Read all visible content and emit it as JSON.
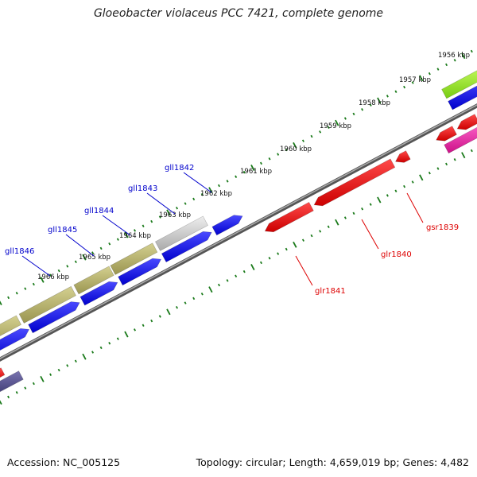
{
  "title": "Gloeobacter violaceus PCC 7421, complete genome",
  "footer": {
    "accession": "Accession: NC_005125",
    "summary": "Topology: circular; Length: 4,659,019 bp; Genes: 4,482"
  },
  "colors": {
    "forward_strand": "#0000ee",
    "reverse_strand": "#ee0000",
    "forward_label": "#0000cc",
    "reverse_label": "#dd0000",
    "backbone": "#777777",
    "ticks": "#1a7a1a",
    "olive_feature": "#b4b06a",
    "gray_feature": "#c8c8c8",
    "green_feature": "#99ee33",
    "magenta_feature": "#ee2aaa",
    "purple_feature": "#55508a"
  },
  "kbp_labels": [
    "1956 kbp",
    "1957 kbp",
    "1958 kbp",
    "1959 kbp",
    "1960 kbp",
    "1961 kbp",
    "1962 kbp",
    "1963 kbp",
    "1964 kbp",
    "1965 kbp",
    "1966 kbp"
  ],
  "genes": [
    {
      "name": "gll1846",
      "strand": "forward"
    },
    {
      "name": "gll1845",
      "strand": "forward"
    },
    {
      "name": "gll1844",
      "strand": "forward"
    },
    {
      "name": "gll1843",
      "strand": "forward"
    },
    {
      "name": "gll1842",
      "strand": "forward"
    },
    {
      "name": "gsr1839",
      "strand": "reverse"
    },
    {
      "name": "glr1840",
      "strand": "reverse"
    },
    {
      "name": "glr1841",
      "strand": "reverse"
    }
  ]
}
